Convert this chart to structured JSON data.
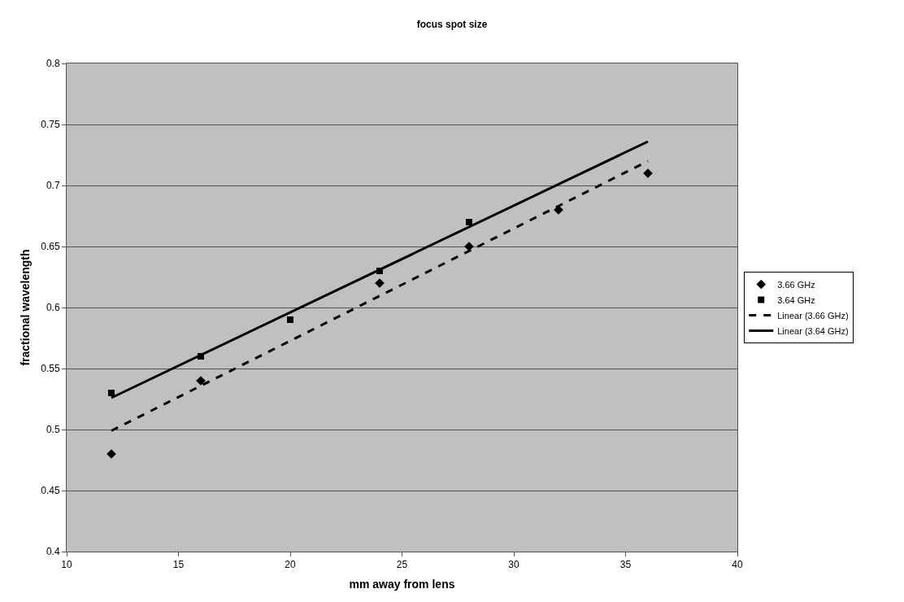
{
  "chart_data": {
    "type": "scatter",
    "title": "focus spot size",
    "xlabel": "mm away from lens",
    "ylabel": "fractional wavelength",
    "xlim": [
      10,
      40
    ],
    "xticks": [
      10,
      15,
      20,
      25,
      30,
      35,
      40
    ],
    "ylim": [
      0.4,
      0.8
    ],
    "yticks": [
      0.4,
      0.45,
      0.5,
      0.55,
      0.6,
      0.65,
      0.7,
      0.75,
      0.8
    ],
    "grid": "y",
    "legend": "right",
    "series": [
      {
        "name": "3.66 GHz",
        "marker": "diamond",
        "color": "#000000",
        "x": [
          12,
          16,
          24,
          28,
          32,
          36
        ],
        "values": [
          0.48,
          0.54,
          0.62,
          0.65,
          0.68,
          0.71
        ]
      },
      {
        "name": "3.64 GHz",
        "marker": "square",
        "color": "#000000",
        "x": [
          12,
          16,
          20,
          24,
          28
        ],
        "values": [
          0.53,
          0.56,
          0.59,
          0.63,
          0.67
        ]
      },
      {
        "name": "Linear (3.66 GHz)",
        "type": "line",
        "line_style": "dashed",
        "color": "#000000",
        "x": [
          12,
          36
        ],
        "values": [
          0.499,
          0.72
        ]
      },
      {
        "name": "Linear (3.64 GHz)",
        "type": "line",
        "line_style": "solid",
        "color": "#000000",
        "x": [
          12,
          36
        ],
        "values": [
          0.526,
          0.736
        ]
      }
    ]
  }
}
